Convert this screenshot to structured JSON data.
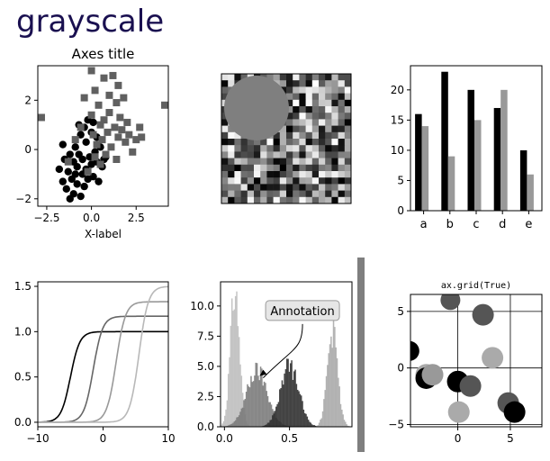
{
  "figure": {
    "title": "grayscale"
  },
  "chart_data": [
    {
      "type": "scatter",
      "title": "Axes title",
      "xlabel": "X-label",
      "ylabel": "",
      "xlim": [
        -3.0,
        4.3
      ],
      "ylim": [
        -2.3,
        3.4
      ],
      "xticks": [
        -2.5,
        0,
        2.5
      ],
      "xtick_labels": [
        "−2.5",
        "0.0",
        "2.5"
      ],
      "yticks": [
        -2,
        0,
        2
      ],
      "ytick_labels": [
        "−2",
        "0",
        "2"
      ],
      "series": [
        {
          "marker": "circle",
          "color": "#000000",
          "points": [
            [
              -1.8,
              -0.8
            ],
            [
              -1.6,
              -1.3
            ],
            [
              -1.5,
              -0.4
            ],
            [
              -1.4,
              -1.6
            ],
            [
              -1.3,
              -0.9
            ],
            [
              -1.2,
              -2.0
            ],
            [
              -1.1,
              -1.2
            ],
            [
              -1.0,
              -0.5
            ],
            [
              -1.0,
              -1.8
            ],
            [
              -0.9,
              0.1
            ],
            [
              -0.8,
              -0.7
            ],
            [
              -0.8,
              -1.4
            ],
            [
              -0.7,
              -0.2
            ],
            [
              -0.6,
              -1.9
            ],
            [
              -0.6,
              0.6
            ],
            [
              -0.5,
              -1.0
            ],
            [
              -0.5,
              -0.4
            ],
            [
              -0.4,
              -1.5
            ],
            [
              -0.3,
              0.3
            ],
            [
              -0.3,
              -0.8
            ],
            [
              -0.2,
              -1.2
            ],
            [
              -0.1,
              -0.3
            ],
            [
              0.0,
              -0.6
            ],
            [
              0.0,
              0.7
            ],
            [
              0.1,
              -1.1
            ],
            [
              0.2,
              -0.1
            ],
            [
              0.3,
              -0.5
            ],
            [
              0.4,
              -1.3
            ],
            [
              0.5,
              0.1
            ],
            [
              0.6,
              -0.7
            ],
            [
              0.7,
              -0.4
            ],
            [
              -1.2,
              -0.2
            ],
            [
              -0.9,
              -1.0
            ],
            [
              -0.4,
              0.9
            ],
            [
              0.8,
              -0.3
            ],
            [
              -1.6,
              0.2
            ],
            [
              -0.2,
              1.2
            ],
            [
              0.3,
              0.5
            ],
            [
              -0.7,
              1.0
            ],
            [
              0.1,
              1.1
            ]
          ]
        },
        {
          "marker": "square",
          "color": "#606060",
          "points": [
            [
              -2.8,
              1.3
            ],
            [
              -1.3,
              -0.5
            ],
            [
              -0.9,
              0.4
            ],
            [
              -0.6,
              0.9
            ],
            [
              -0.4,
              2.1
            ],
            [
              -0.2,
              -0.9
            ],
            [
              0.0,
              3.2
            ],
            [
              0.0,
              1.4
            ],
            [
              0.1,
              0.6
            ],
            [
              0.2,
              2.4
            ],
            [
              0.3,
              0.2
            ],
            [
              0.4,
              1.8
            ],
            [
              0.5,
              -0.6
            ],
            [
              0.5,
              1.0
            ],
            [
              0.6,
              0.4
            ],
            [
              0.7,
              2.9
            ],
            [
              0.7,
              1.2
            ],
            [
              0.8,
              -0.2
            ],
            [
              0.9,
              0.7
            ],
            [
              1.0,
              1.5
            ],
            [
              1.0,
              2.2
            ],
            [
              1.1,
              0.1
            ],
            [
              1.2,
              3.0
            ],
            [
              1.3,
              0.9
            ],
            [
              1.4,
              1.9
            ],
            [
              1.4,
              -0.4
            ],
            [
              1.5,
              0.5
            ],
            [
              1.6,
              1.3
            ],
            [
              1.7,
              0.8
            ],
            [
              1.8,
              2.1
            ],
            [
              1.9,
              0.3
            ],
            [
              2.0,
              1.1
            ],
            [
              2.1,
              0.6
            ],
            [
              2.3,
              -0.1
            ],
            [
              2.5,
              0.4
            ],
            [
              2.7,
              0.9
            ],
            [
              2.8,
              0.5
            ],
            [
              4.1,
              1.8
            ],
            [
              1.5,
              2.6
            ],
            [
              0.2,
              -0.3
            ]
          ]
        }
      ]
    },
    {
      "type": "heatmap",
      "rows": 20,
      "cols": 20,
      "overlay": {
        "shape": "circle",
        "color": "#7f7f7f"
      }
    },
    {
      "type": "bar",
      "categories": [
        "a",
        "b",
        "c",
        "d",
        "e"
      ],
      "ylim": [
        0,
        24
      ],
      "yticks": [
        0,
        5,
        10,
        15,
        20
      ],
      "series": [
        {
          "color": "#000000",
          "values": [
            16,
            23,
            20,
            17,
            10
          ]
        },
        {
          "color": "#999999",
          "values": [
            14,
            9,
            15,
            20,
            6
          ]
        }
      ]
    },
    {
      "type": "line",
      "xlim": [
        -10,
        10
      ],
      "ylim": [
        -0.05,
        1.55
      ],
      "xticks": [
        -10,
        0,
        10
      ],
      "xtick_labels": [
        "−10",
        "0",
        "10"
      ],
      "yticks": [
        0.0,
        0.5,
        1.0,
        1.5
      ],
      "ytick_labels": [
        "0.0",
        "0.5",
        "1.0",
        "1.5"
      ],
      "series": [
        {
          "color": "#000000",
          "center": -5,
          "amplitude": 1.0
        },
        {
          "color": "#666666",
          "center": -1.5,
          "amplitude": 1.17
        },
        {
          "color": "#999999",
          "center": 2,
          "amplitude": 1.33
        },
        {
          "color": "#b8b8b8",
          "center": 5.5,
          "amplitude": 1.5
        }
      ]
    },
    {
      "type": "histogram",
      "xlim": [
        -0.03,
        0.98
      ],
      "ylim": [
        0,
        12.0
      ],
      "xticks": [
        0.0,
        0.5
      ],
      "xtick_labels": [
        "0.0",
        "0.5"
      ],
      "yticks": [
        0.0,
        2.5,
        5.0,
        7.5,
        10.0
      ],
      "ytick_labels": [
        "0.0",
        "2.5",
        "5.0",
        "7.5",
        "10.0"
      ],
      "series": [
        {
          "color": "#bdbdbd",
          "center": 0.08,
          "width": 0.035,
          "peak": 11.2
        },
        {
          "color": "#7a7a7a",
          "center": 0.25,
          "width": 0.08,
          "peak": 4.6
        },
        {
          "color": "#2e2e2e",
          "center": 0.5,
          "width": 0.07,
          "peak": 5.0
        },
        {
          "color": "#a8a8a8",
          "center": 0.83,
          "width": 0.04,
          "peak": 7.8
        }
      ],
      "annotation": {
        "text": "Annotation",
        "xy": [
          0.27,
          4.2
        ],
        "text_xy": [
          0.6,
          9.4
        ]
      }
    },
    {
      "type": "scatter",
      "title": "ax.grid(True)",
      "grid": true,
      "xlim": [
        -4.5,
        8
      ],
      "ylim": [
        -5.2,
        6.5
      ],
      "xticks": [
        0,
        5
      ],
      "yticks": [
        -5,
        0,
        5
      ],
      "ytick_labels": [
        "−5",
        "0",
        "5"
      ],
      "points": [
        {
          "x": -4.6,
          "y": 1.5,
          "color": "#000000",
          "size": 11
        },
        {
          "x": -0.7,
          "y": 6.0,
          "color": "#555555",
          "size": 11
        },
        {
          "x": 2.4,
          "y": 4.7,
          "color": "#555555",
          "size": 12
        },
        {
          "x": 3.3,
          "y": 0.9,
          "color": "#aaaaaa",
          "size": 12
        },
        {
          "x": -3.0,
          "y": -0.6,
          "color": "#aaaaaa",
          "size": 12
        },
        {
          "x": -3.0,
          "y": -0.9,
          "color": "#000000",
          "size": 12
        },
        {
          "x": -2.4,
          "y": -0.6,
          "color": "#999999",
          "size": 12
        },
        {
          "x": 0.0,
          "y": -1.2,
          "color": "#000000",
          "size": 12
        },
        {
          "x": 1.2,
          "y": -1.6,
          "color": "#555555",
          "size": 12
        },
        {
          "x": 0.1,
          "y": -3.9,
          "color": "#aaaaaa",
          "size": 12
        },
        {
          "x": 4.8,
          "y": -3.1,
          "color": "#555555",
          "size": 12
        },
        {
          "x": 5.4,
          "y": -3.9,
          "color": "#000000",
          "size": 12
        }
      ]
    }
  ],
  "colorbar": {
    "color": "#7f7f7f"
  }
}
